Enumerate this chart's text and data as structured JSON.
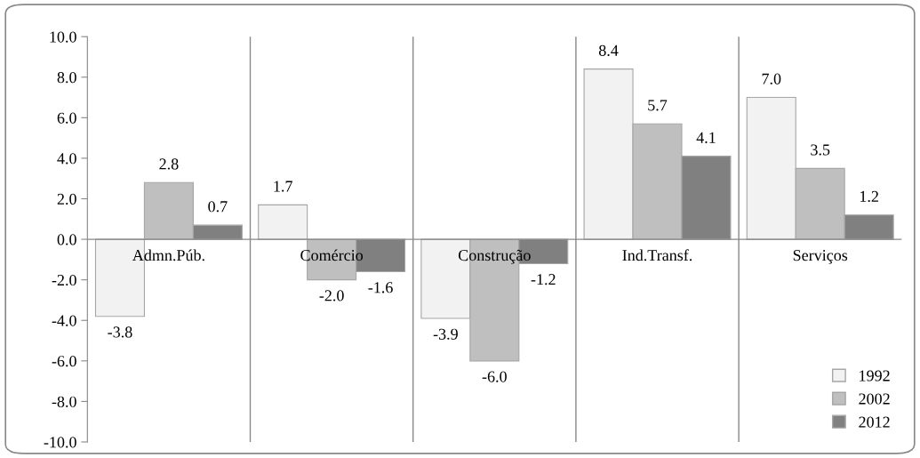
{
  "chart_data": {
    "type": "bar",
    "categories": [
      "Admn.Púb.",
      "Comércio",
      "Construção",
      "Ind.Transf.",
      "Serviços"
    ],
    "series": [
      {
        "name": "1992",
        "color": "#f2f2f2",
        "values": [
          -3.8,
          1.7,
          -3.9,
          8.4,
          7.0
        ],
        "value_labels": [
          "-3.8",
          "1.7",
          "-3.9",
          "8.4",
          "7.0"
        ]
      },
      {
        "name": "2002",
        "color": "#bfbfbf",
        "values": [
          2.8,
          -2.0,
          -6.0,
          5.7,
          3.5
        ],
        "value_labels": [
          "2.8",
          "-2.0",
          "-6.0",
          "5.7",
          "3.5"
        ]
      },
      {
        "name": "2012",
        "color": "#808080",
        "values": [
          0.7,
          -1.6,
          -1.2,
          4.1,
          1.2
        ],
        "value_labels": [
          "0.7",
          "-1.6",
          "-1.2",
          "4.1",
          "1.2"
        ]
      }
    ],
    "ylim": [
      -10,
      10
    ],
    "yticks": [
      {
        "value": -10,
        "label": "-10.0"
      },
      {
        "value": -8,
        "label": "-8.0"
      },
      {
        "value": -6,
        "label": "-6.0"
      },
      {
        "value": -4,
        "label": "-4.0"
      },
      {
        "value": -2,
        "label": "-2.0"
      },
      {
        "value": 0,
        "label": "0.0"
      },
      {
        "value": 2,
        "label": "2.0"
      },
      {
        "value": 4,
        "label": "4.0"
      },
      {
        "value": 6,
        "label": "6.0"
      },
      {
        "value": 8,
        "label": "8.0"
      },
      {
        "value": 10,
        "label": "10.0"
      }
    ],
    "grid": "x",
    "legend": "bottom right"
  }
}
